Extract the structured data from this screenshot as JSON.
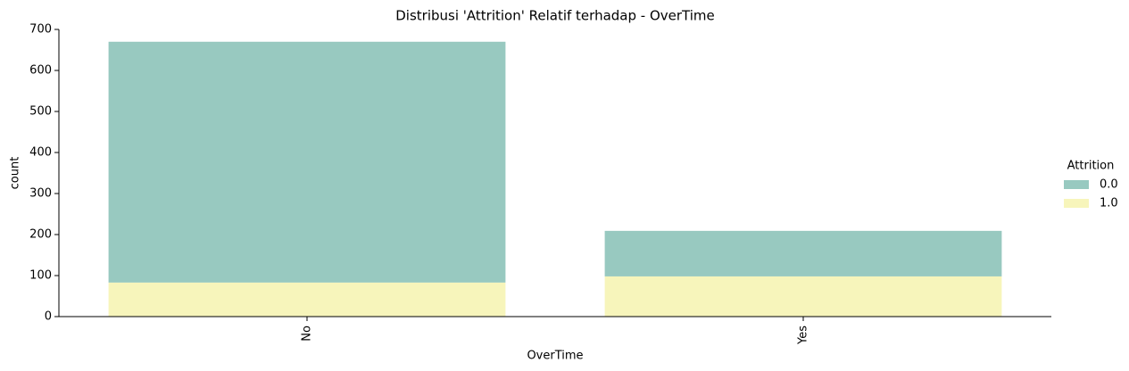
{
  "chart_data": {
    "type": "bar",
    "title": "Distribusi 'Attrition' Relatif terhadap - OverTime",
    "x_label": "OverTime",
    "y_label": "count",
    "categories": [
      "No",
      "Yes"
    ],
    "legend_title": "Attrition",
    "series": [
      {
        "name": "0.0",
        "color": "#98c9c0",
        "values": [
          587,
          111
        ]
      },
      {
        "name": "1.0",
        "color": "#f7f5bb",
        "values": [
          83,
          98
        ]
      }
    ],
    "stacked": true,
    "ylim": [
      0,
      700
    ],
    "yticks": [
      0,
      100,
      200,
      300,
      400,
      500,
      600,
      700
    ],
    "grid": false,
    "legend": "right"
  }
}
